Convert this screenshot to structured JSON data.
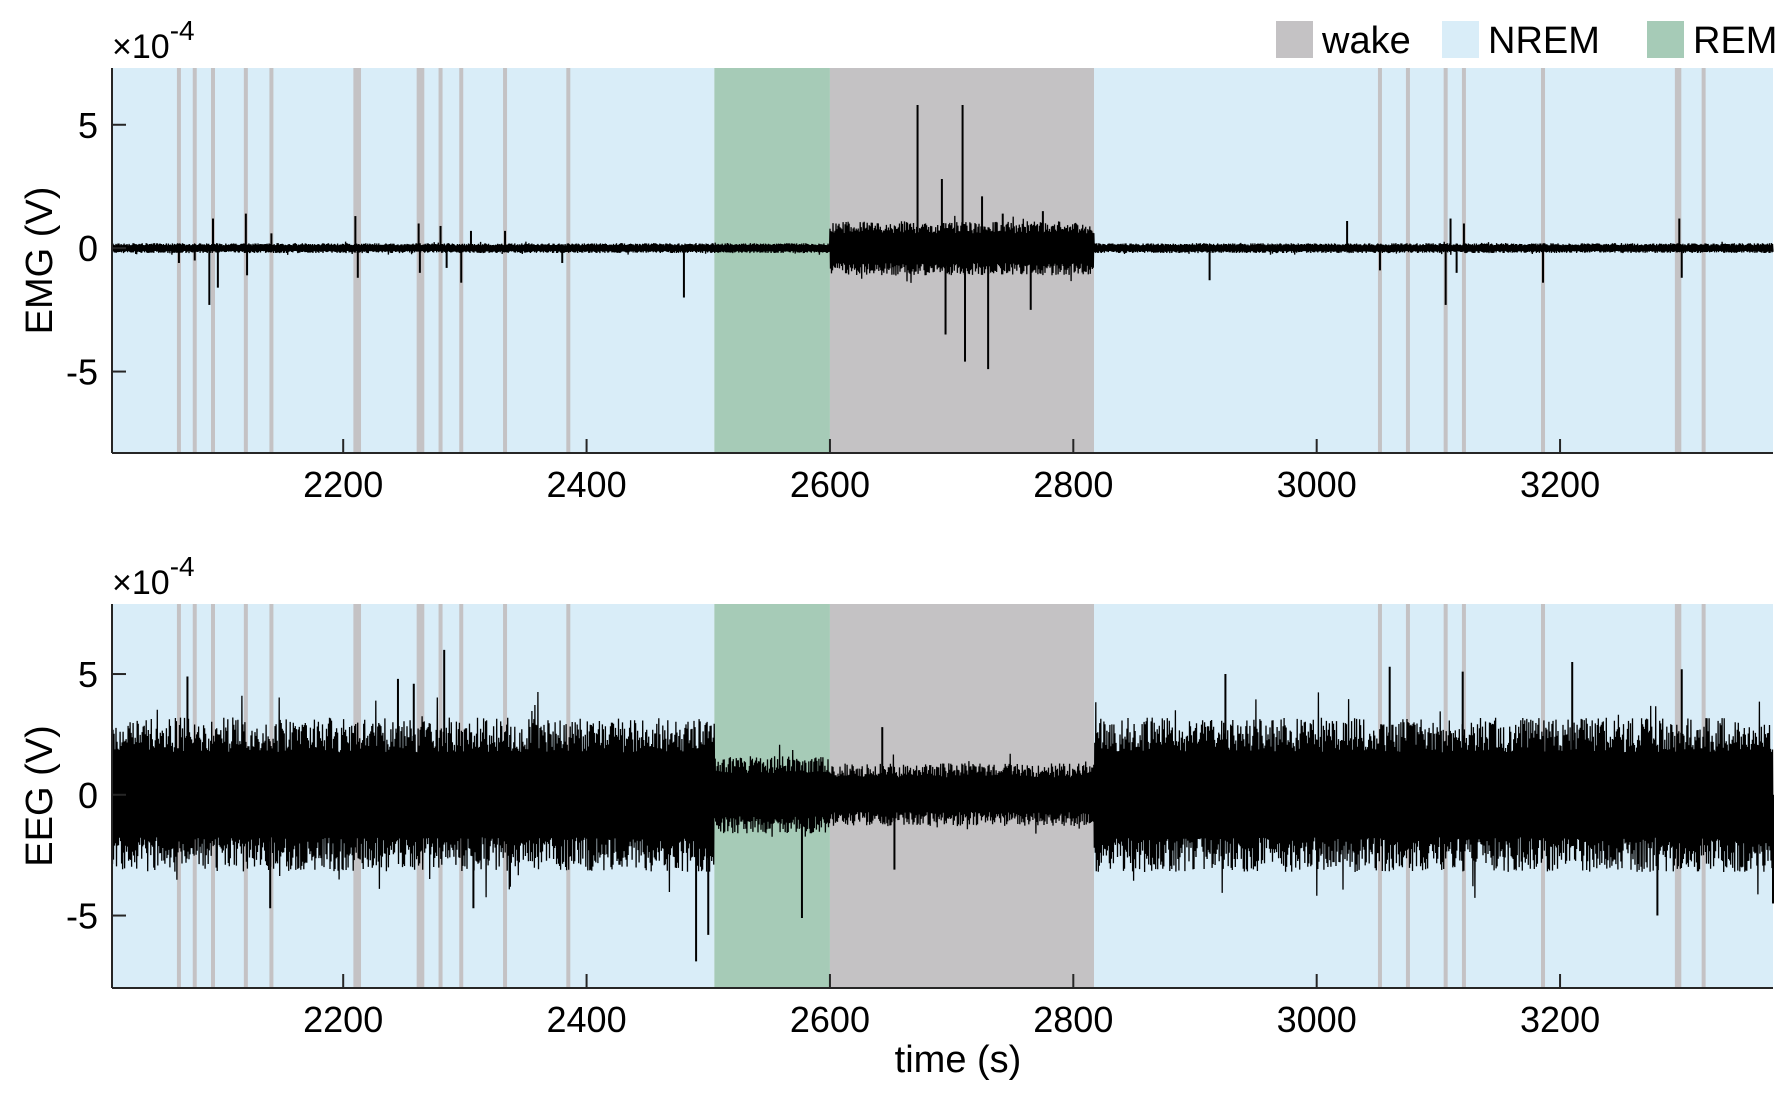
{
  "chart_data": {
    "type": "line",
    "x_unit_label": "time (s)",
    "xlim": [
      2010,
      3375
    ],
    "x_ticks": [
      2200,
      2400,
      2600,
      2800,
      3000,
      3200
    ],
    "y_ticks": [
      -5,
      0,
      5
    ],
    "legend": {
      "position": "top-right",
      "entries": [
        {
          "label": "wake",
          "color": "#c4c2c4"
        },
        {
          "label": "NREM",
          "color": "#d9edf8"
        },
        {
          "label": "REM",
          "color": "#a6cbb7"
        }
      ]
    },
    "state_segments": [
      {
        "state": "NREM",
        "start": 2010,
        "end": 2505
      },
      {
        "state": "REM",
        "start": 2505,
        "end": 2600
      },
      {
        "state": "wake",
        "start": 2600,
        "end": 2817
      },
      {
        "state": "NREM",
        "start": 2817,
        "end": 3375
      }
    ],
    "brief_wake_times": [
      2065,
      2078,
      2093,
      2120,
      2141,
      2210,
      2213,
      2262,
      2265,
      2280,
      2297,
      2333,
      2385,
      3052,
      3075,
      3106,
      3121,
      3186,
      3296,
      3298,
      3318
    ],
    "panels": [
      {
        "ylabel": "EMG (V)",
        "exponent_label": "×10",
        "exponent_power": "-4",
        "ylim": [
          -8.3,
          7.3
        ],
        "baseline_noise": 0.2,
        "wake_noise": 1.1,
        "spikes": [
          {
            "t": 2065,
            "v": -0.6
          },
          {
            "t": 2078,
            "v": -0.5
          },
          {
            "t": 2090,
            "v": -2.3
          },
          {
            "t": 2093,
            "v": 1.2
          },
          {
            "t": 2097,
            "v": -1.6
          },
          {
            "t": 2120,
            "v": 1.4
          },
          {
            "t": 2121,
            "v": -1.1
          },
          {
            "t": 2141,
            "v": 0.6
          },
          {
            "t": 2210,
            "v": 1.3
          },
          {
            "t": 2212,
            "v": -1.2
          },
          {
            "t": 2262,
            "v": 1.0
          },
          {
            "t": 2263,
            "v": -1.0
          },
          {
            "t": 2280,
            "v": 0.9
          },
          {
            "t": 2285,
            "v": -0.8
          },
          {
            "t": 2297,
            "v": -1.4
          },
          {
            "t": 2305,
            "v": 0.7
          },
          {
            "t": 2333,
            "v": 0.7
          },
          {
            "t": 2380,
            "v": -0.6
          },
          {
            "t": 2480,
            "v": -2.0
          },
          {
            "t": 2672,
            "v": 5.8
          },
          {
            "t": 2692,
            "v": 2.8
          },
          {
            "t": 2695,
            "v": -3.5
          },
          {
            "t": 2709,
            "v": 5.8
          },
          {
            "t": 2711,
            "v": -4.6
          },
          {
            "t": 2725,
            "v": 2.1
          },
          {
            "t": 2730,
            "v": -4.9
          },
          {
            "t": 2742,
            "v": 1.4
          },
          {
            "t": 2765,
            "v": -2.5
          },
          {
            "t": 2775,
            "v": 1.5
          },
          {
            "t": 2912,
            "v": -1.3
          },
          {
            "t": 3025,
            "v": 1.1
          },
          {
            "t": 3052,
            "v": -0.9
          },
          {
            "t": 3106,
            "v": -2.3
          },
          {
            "t": 3110,
            "v": 1.2
          },
          {
            "t": 3115,
            "v": -1.0
          },
          {
            "t": 3121,
            "v": 1.0
          },
          {
            "t": 3186,
            "v": -1.4
          },
          {
            "t": 3298,
            "v": 1.2
          },
          {
            "t": 3300,
            "v": -1.2
          }
        ]
      },
      {
        "ylabel": "EEG (V)",
        "exponent_label": "×10",
        "exponent_power": "-4",
        "ylim": [
          -8.0,
          7.9
        ],
        "nrem_amplitude": 3.2,
        "rem_amplitude": 1.6,
        "wake_amplitude": 1.3,
        "spikes": [
          {
            "t": 2072,
            "v": 4.9
          },
          {
            "t": 2140,
            "v": -4.7
          },
          {
            "t": 2245,
            "v": 4.8
          },
          {
            "t": 2258,
            "v": 4.6
          },
          {
            "t": 2283,
            "v": 6.0
          },
          {
            "t": 2307,
            "v": -4.7
          },
          {
            "t": 2490,
            "v": -6.9
          },
          {
            "t": 2500,
            "v": -5.8
          },
          {
            "t": 2577,
            "v": -5.1
          },
          {
            "t": 2643,
            "v": 2.8
          },
          {
            "t": 2653,
            "v": -3.1
          },
          {
            "t": 2925,
            "v": 5.0
          },
          {
            "t": 3060,
            "v": 5.3
          },
          {
            "t": 3120,
            "v": 5.1
          },
          {
            "t": 3210,
            "v": 5.5
          },
          {
            "t": 3280,
            "v": -5.0
          },
          {
            "t": 3300,
            "v": 5.2
          },
          {
            "t": 3375,
            "v": -4.5
          }
        ]
      }
    ]
  }
}
